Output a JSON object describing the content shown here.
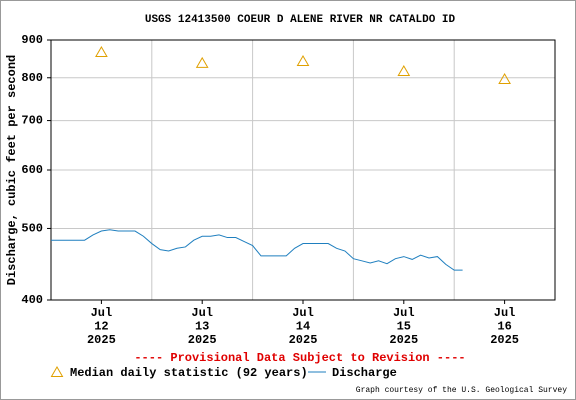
{
  "chart_data": {
    "type": "line",
    "title": "USGS 12413500 COEUR D ALENE RIVER NR CATALDO ID",
    "y_label": "Discharge, cubic feet per second",
    "y_scale": "log",
    "ylim": [
      400,
      900
    ],
    "yticks": [
      400,
      500,
      600,
      700,
      800,
      900
    ],
    "xlim": [
      "2025-07-12 00:00",
      "2025-07-17 00:00"
    ],
    "xticks": [
      {
        "value": "2025-07-12 12:00",
        "label": [
          "Jul",
          "12",
          "2025"
        ]
      },
      {
        "value": "2025-07-13 12:00",
        "label": [
          "Jul",
          "13",
          "2025"
        ]
      },
      {
        "value": "2025-07-14 12:00",
        "label": [
          "Jul",
          "14",
          "2025"
        ]
      },
      {
        "value": "2025-07-15 12:00",
        "label": [
          "Jul",
          "15",
          "2025"
        ]
      },
      {
        "value": "2025-07-16 12:00",
        "label": [
          "Jul",
          "16",
          "2025"
        ]
      }
    ],
    "x_grid": [
      "2025-07-13 00:00",
      "2025-07-14 00:00",
      "2025-07-15 00:00",
      "2025-07-16 00:00"
    ],
    "grid": true,
    "series": [
      {
        "name": "Median daily statistic (92 years)",
        "color": "#e0a000",
        "marker": "triangle",
        "x": [
          "2025-07-12 12:00",
          "2025-07-13 12:00",
          "2025-07-14 12:00",
          "2025-07-15 12:00",
          "2025-07-16 12:00"
        ],
        "values": [
          867,
          838,
          843,
          817,
          797
        ]
      },
      {
        "name": "Discharge",
        "color": "#1f7fbf",
        "marker": "line",
        "x": [
          "2025-07-12 00:00",
          "2025-07-12 02:00",
          "2025-07-12 04:00",
          "2025-07-12 06:00",
          "2025-07-12 08:00",
          "2025-07-12 10:00",
          "2025-07-12 12:00",
          "2025-07-12 14:00",
          "2025-07-12 16:00",
          "2025-07-12 18:00",
          "2025-07-12 20:00",
          "2025-07-12 22:00",
          "2025-07-13 00:00",
          "2025-07-13 02:00",
          "2025-07-13 04:00",
          "2025-07-13 06:00",
          "2025-07-13 08:00",
          "2025-07-13 10:00",
          "2025-07-13 12:00",
          "2025-07-13 14:00",
          "2025-07-13 16:00",
          "2025-07-13 18:00",
          "2025-07-13 20:00",
          "2025-07-13 22:00",
          "2025-07-14 00:00",
          "2025-07-14 02:00",
          "2025-07-14 04:00",
          "2025-07-14 06:00",
          "2025-07-14 08:00",
          "2025-07-14 10:00",
          "2025-07-14 12:00",
          "2025-07-14 14:00",
          "2025-07-14 16:00",
          "2025-07-14 18:00",
          "2025-07-14 20:00",
          "2025-07-14 22:00",
          "2025-07-15 00:00",
          "2025-07-15 02:00",
          "2025-07-15 04:00",
          "2025-07-15 06:00",
          "2025-07-15 08:00",
          "2025-07-15 10:00",
          "2025-07-15 12:00",
          "2025-07-15 14:00",
          "2025-07-15 16:00",
          "2025-07-15 18:00",
          "2025-07-15 20:00",
          "2025-07-15 22:00",
          "2025-07-16 00:00",
          "2025-07-16 02:00"
        ],
        "values": [
          482,
          482,
          482,
          482,
          482,
          490,
          496,
          498,
          496,
          496,
          496,
          488,
          477,
          468,
          466,
          470,
          472,
          482,
          488,
          488,
          490,
          486,
          486,
          480,
          474,
          459,
          459,
          459,
          459,
          470,
          477,
          477,
          477,
          477,
          470,
          466,
          455,
          452,
          449,
          452,
          448,
          455,
          458,
          454,
          460,
          456,
          458,
          447,
          439,
          439
        ]
      }
    ],
    "note": "---- Provisional Data Subject to Revision ----",
    "credit": "Graph courtesy of the U.S. Geological Survey"
  }
}
